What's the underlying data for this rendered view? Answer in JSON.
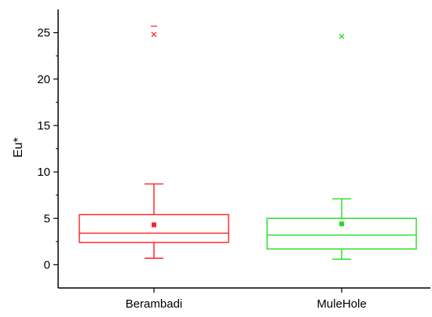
{
  "chart_data": {
    "type": "box",
    "title": "",
    "xlabel": "",
    "ylabel": "Eu*",
    "ylim": [
      -2.5,
      27.5
    ],
    "yticks": [
      0,
      5,
      10,
      15,
      20,
      25
    ],
    "grid": false,
    "categories": [
      "Berambadi",
      "MuleHole"
    ],
    "colors": {
      "Berambadi": "#ff2020",
      "MuleHole": "#22dd22",
      "axis": "#000000"
    },
    "series": [
      {
        "category": "Berambadi",
        "whisker_low": 0.7,
        "q1": 2.4,
        "median": 3.4,
        "q3": 5.4,
        "whisker_high": 8.7,
        "mean": 4.3,
        "outliers": [
          24.8
        ],
        "max_marker": 25.7
      },
      {
        "category": "MuleHole",
        "whisker_low": 0.6,
        "q1": 1.7,
        "median": 3.2,
        "q3": 5.0,
        "whisker_high": 7.1,
        "mean": 4.4,
        "outliers": [
          24.6
        ],
        "max_marker": null
      }
    ]
  }
}
